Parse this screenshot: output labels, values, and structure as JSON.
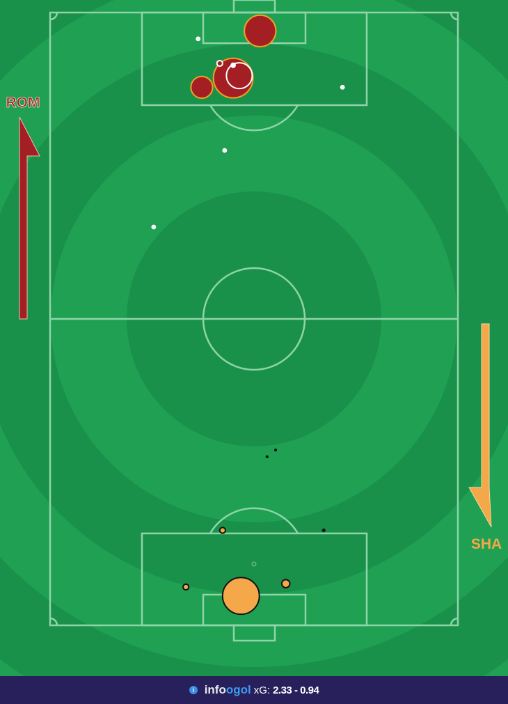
{
  "chart_data": {
    "type": "scatter",
    "description_units": "pitch percent: x across (0 left to 100 right), y along (0 top goal line to 100 bottom goal line); marker area proportional to xG",
    "teams": [
      {
        "label": "ROM",
        "direction": "up",
        "color": "#a41f24",
        "shots": [
          {
            "x": 51.5,
            "y": 3.0,
            "xg": 0.61,
            "goal": true
          },
          {
            "x": 44.9,
            "y": 10.7,
            "xg": 0.96,
            "goal": true
          },
          {
            "x": 37.2,
            "y": 12.2,
            "xg": 0.29,
            "goal": true
          },
          {
            "x": 46.4,
            "y": 10.3,
            "xg": 0.41,
            "goal": false
          },
          {
            "x": 41.6,
            "y": 8.3,
            "xg": 0.02,
            "goal": false
          },
          {
            "x": 44.9,
            "y": 8.6,
            "xg": 0.01,
            "goal": false
          },
          {
            "x": 36.3,
            "y": 4.3,
            "xg": 0.007,
            "goal": false
          },
          {
            "x": 71.7,
            "y": 12.2,
            "xg": 0.007,
            "goal": false
          },
          {
            "x": 42.8,
            "y": 22.5,
            "xg": 0.007,
            "goal": false
          },
          {
            "x": 25.4,
            "y": 35.0,
            "xg": 0.007,
            "goal": false
          }
        ]
      },
      {
        "label": "SHA",
        "direction": "down",
        "color": "#f4a84a",
        "shots": [
          {
            "x": 46.8,
            "y": 95.2,
            "xg": 0.83
          },
          {
            "x": 57.8,
            "y": 93.2,
            "xg": 0.04
          },
          {
            "x": 33.3,
            "y": 93.75,
            "xg": 0.02
          },
          {
            "x": 42.3,
            "y": 84.5,
            "xg": 0.02
          },
          {
            "x": 67.1,
            "y": 84.5,
            "xg": 0.008
          },
          {
            "x": 53.2,
            "y": 72.5,
            "xg": 0.005
          },
          {
            "x": 55.3,
            "y": 71.4,
            "xg": 0.005
          },
          {
            "x": 50.0,
            "y": 90.0,
            "xg": 0.01
          }
        ]
      }
    ]
  },
  "colors": {
    "pitch_light": "#1fa053",
    "pitch_dark": "#1a914a",
    "lines": "#8fd4a8",
    "footer": "#27205a",
    "goal_outline": "#f4a020",
    "sha_outline": "#111111"
  },
  "footer": {
    "brand_prefix": "info",
    "brand_o": "o",
    "brand_suffix": "gol",
    "xg_label": "xG:",
    "score": "2.33 - 0.94",
    "info_icon": "info-icon"
  }
}
